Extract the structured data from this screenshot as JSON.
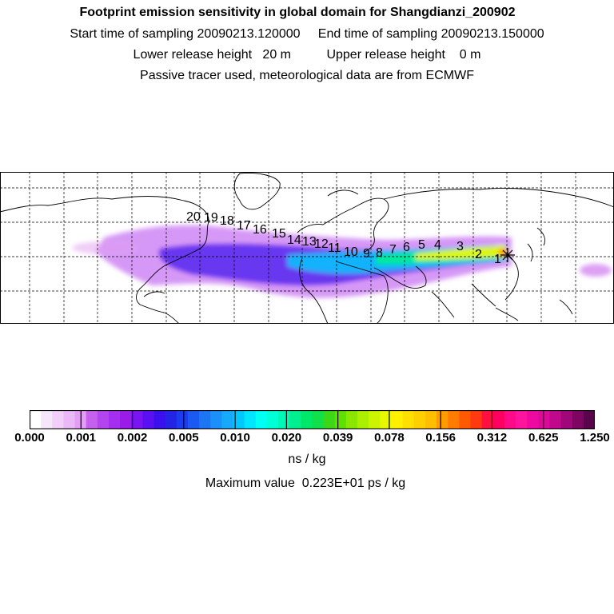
{
  "header": {
    "title": "Footprint emission sensitivity in global domain for Shangdianzi_200902",
    "line2": "Start time of sampling 20090213.120000     End time of sampling 20090213.150000",
    "line3": "Lower release height   20 m          Upper release height    0 m",
    "line4": "Passive tracer used, meteorological data are from ECMWF"
  },
  "map": {
    "trajectory_labels": [
      "1",
      "2",
      "3",
      "4",
      "5",
      "6",
      "7",
      "8",
      "9",
      "10",
      "11",
      "12",
      "13",
      "14",
      "15",
      "16",
      "17",
      "18",
      "19",
      "20"
    ],
    "release_marker": "release-point-asterisk"
  },
  "colorbar": {
    "tick_labels": [
      "0.000",
      "0.001",
      "0.002",
      "0.005",
      "0.010",
      "0.020",
      "0.039",
      "0.078",
      "0.156",
      "0.312",
      "0.625",
      "1.250"
    ],
    "unit": "ns / kg",
    "max_value_text": "Maximum value  0.223E+01 ps / kg",
    "colors": [
      "#ffffff",
      "#f6e6fb",
      "#f1cff8",
      "#eab8f6",
      "#e29ef2",
      "#c660ee",
      "#b444ee",
      "#a52ff0",
      "#9a1ce6",
      "#7a14f0",
      "#5a10f0",
      "#3a10ee",
      "#2424e6",
      "#1c3cf0",
      "#1a5af2",
      "#1c76f4",
      "#1a90f8",
      "#18aafa",
      "#00c8ff",
      "#00e6ff",
      "#00fff4",
      "#00ffd6",
      "#00f8b6",
      "#00f090",
      "#00e86a",
      "#10e04a",
      "#3cd818",
      "#60e000",
      "#8ae800",
      "#aaf000",
      "#ccf400",
      "#e8f800",
      "#fff000",
      "#ffe000",
      "#ffd000",
      "#ffbe00",
      "#ff9c00",
      "#ff7c00",
      "#ff5a00",
      "#ff3a10",
      "#ff1040",
      "#ff0060",
      "#ff0a88",
      "#ff14a0",
      "#ee0aa0",
      "#dc0a9a",
      "#c0088c",
      "#a0087a",
      "#7e0662",
      "#5a044c"
    ]
  }
}
